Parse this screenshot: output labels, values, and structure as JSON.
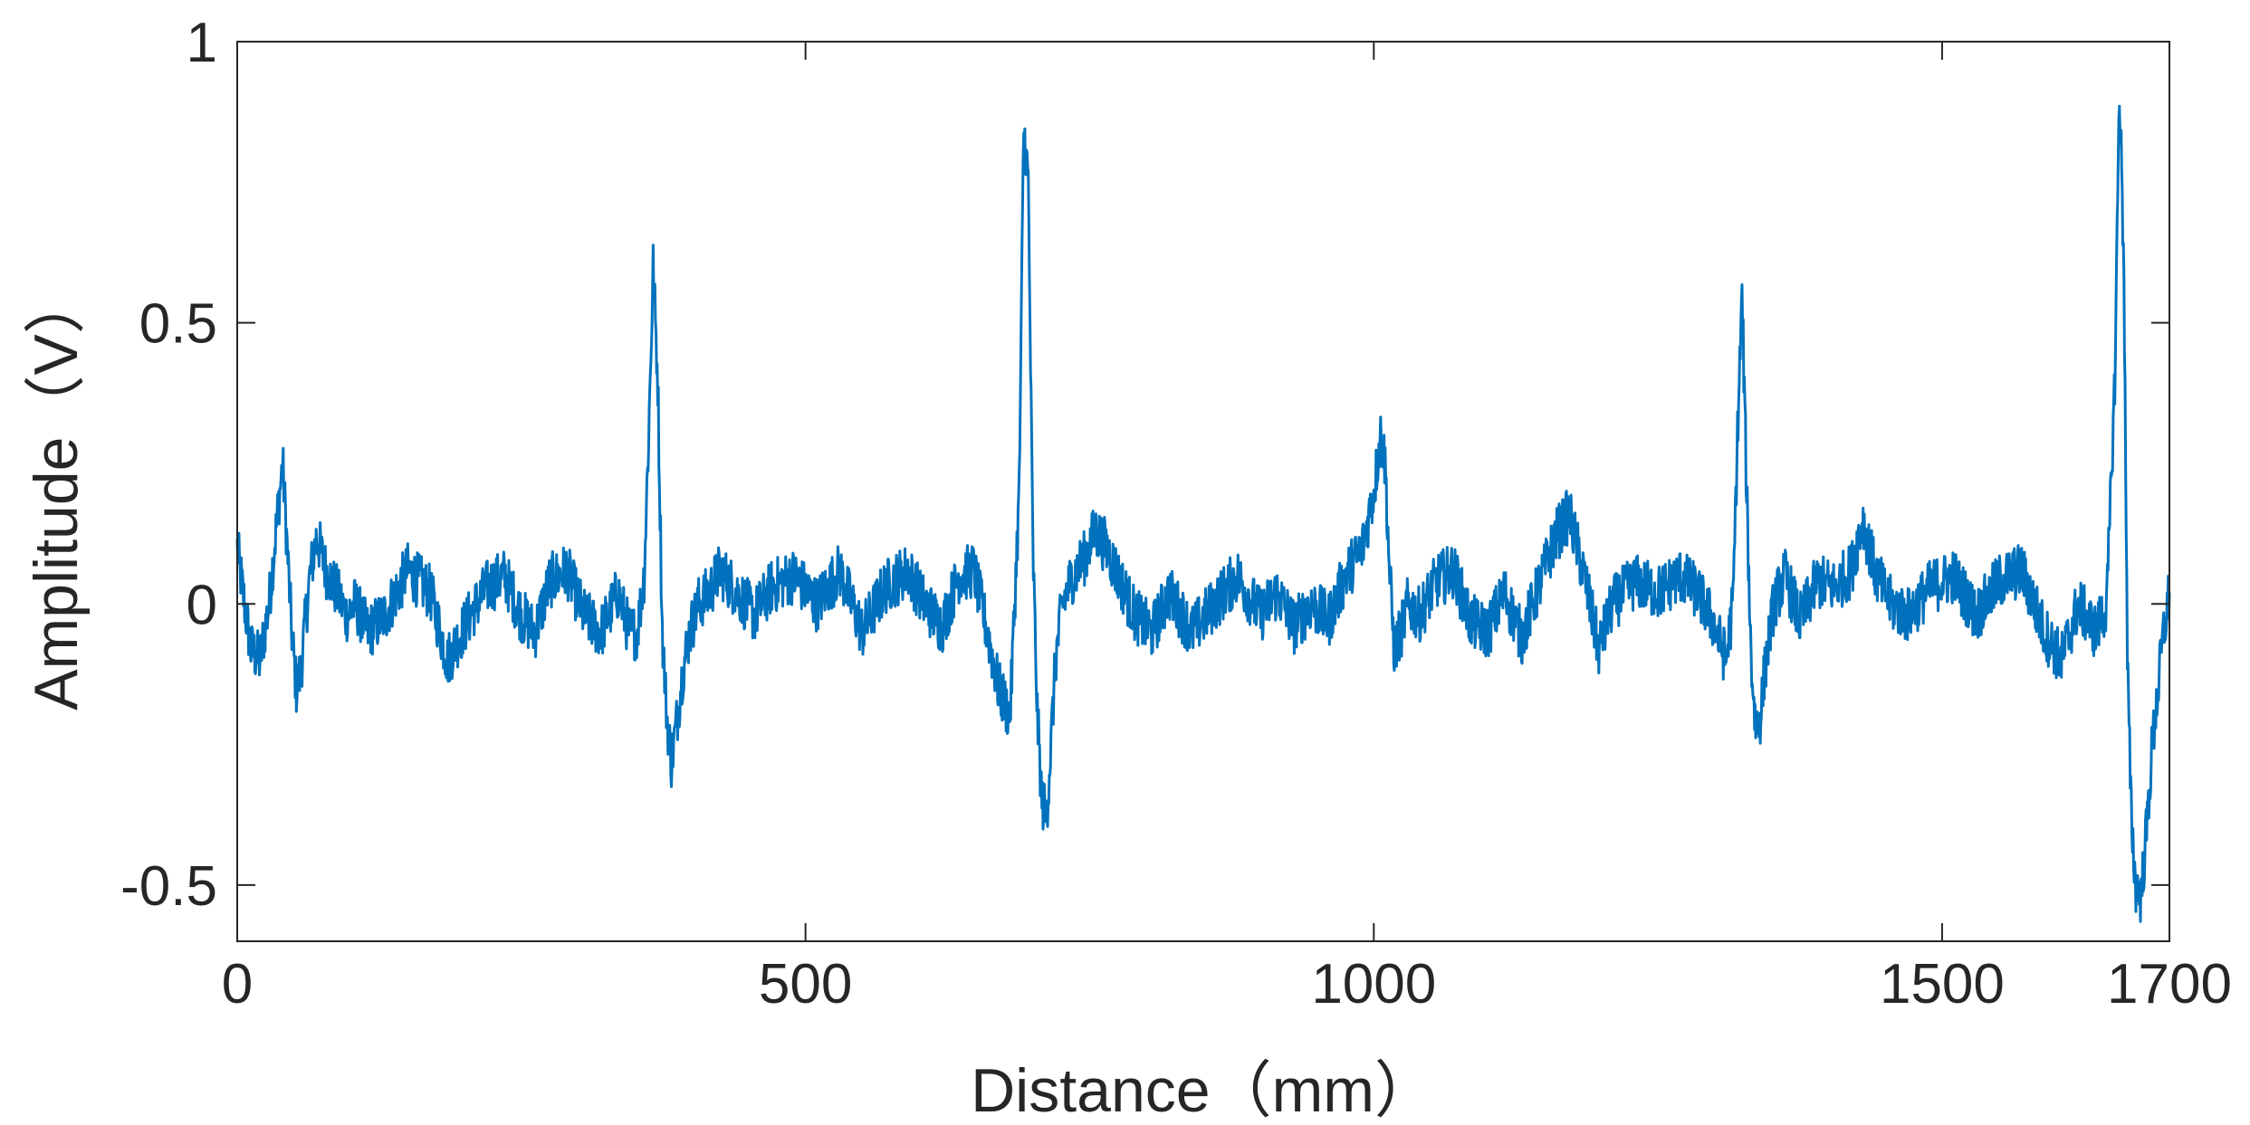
{
  "chart_data": {
    "type": "line",
    "title": "",
    "xlabel": "Distance（mm）",
    "ylabel": "Amplitude（V）",
    "xlim": [
      0,
      1700
    ],
    "ylim": [
      -0.6,
      1
    ],
    "x_ticks": [
      {
        "value": 0,
        "label": "0"
      },
      {
        "value": 500,
        "label": "500"
      },
      {
        "value": 1000,
        "label": "1000"
      },
      {
        "value": 1500,
        "label": "1500"
      },
      {
        "value": 1700,
        "label": "1700"
      }
    ],
    "y_ticks": [
      {
        "value": -0.5,
        "label": "-0.5"
      },
      {
        "value": 0,
        "label": "0"
      },
      {
        "value": 0.5,
        "label": "0.5"
      },
      {
        "value": 1,
        "label": "1"
      }
    ],
    "grid": false,
    "line_color": "#0072BD",
    "series": [
      {
        "x": [
          0,
          5,
          12,
          20,
          28,
          35,
          40,
          44,
          48,
          52,
          56,
          60,
          64,
          70,
          78,
          88,
          96,
          104,
          115,
          130,
          150,
          170,
          185,
          195,
          205,
          220,
          235,
          250,
          262,
          275,
          290,
          305,
          320,
          335,
          345,
          352,
          358,
          362,
          366,
          370,
          374,
          378,
          382,
          386,
          392,
          398,
          406,
          415,
          425,
          440,
          455,
          470,
          490,
          510,
          530,
          550,
          570,
          590,
          605,
          620,
          635,
          648,
          660,
          670,
          680,
          688,
          692,
          696,
          700,
          704,
          708,
          712,
          716,
          720,
          726,
          735,
          745,
          755,
          765,
          775,
          790,
          805,
          820,
          840,
          860,
          880,
          900,
          915,
          930,
          945,
          960,
          975,
          990,
          1000,
          1006,
          1010,
          1014,
          1018,
          1024,
          1030,
          1040,
          1055,
          1070,
          1085,
          1100,
          1115,
          1130,
          1145,
          1160,
          1172,
          1185,
          1198,
          1210,
          1230,
          1250,
          1270,
          1285,
          1298,
          1310,
          1316,
          1320,
          1324,
          1328,
          1332,
          1336,
          1340,
          1345,
          1352,
          1362,
          1375,
          1390,
          1405,
          1420,
          1430,
          1442,
          1455,
          1470,
          1490,
          1510,
          1530,
          1550,
          1570,
          1590,
          1605,
          1620,
          1635,
          1645,
          1652,
          1656,
          1660,
          1663,
          1666,
          1670,
          1675,
          1680,
          1685,
          1690,
          1695,
          1700
        ],
        "values": [
          0.1,
          0.02,
          -0.08,
          -0.1,
          0.0,
          0.15,
          0.25,
          0.1,
          -0.05,
          -0.15,
          -0.12,
          -0.03,
          0.05,
          0.12,
          0.06,
          0.02,
          -0.02,
          0.0,
          -0.05,
          -0.02,
          0.06,
          0.02,
          -0.1,
          -0.06,
          -0.02,
          0.03,
          0.05,
          -0.02,
          -0.05,
          0.04,
          0.06,
          -0.02,
          -0.05,
          0.02,
          -0.05,
          -0.05,
          0.05,
          0.3,
          0.6,
          0.4,
          -0.05,
          -0.2,
          -0.28,
          -0.22,
          -0.12,
          -0.05,
          0.0,
          0.02,
          0.06,
          0.02,
          -0.02,
          0.03,
          0.05,
          0.0,
          0.06,
          -0.05,
          0.03,
          0.06,
          0.0,
          -0.04,
          0.05,
          0.06,
          -0.05,
          -0.15,
          -0.2,
          0.2,
          0.85,
          0.75,
          0.1,
          -0.2,
          -0.35,
          -0.38,
          -0.25,
          -0.1,
          0.0,
          0.05,
          0.08,
          0.13,
          0.1,
          0.05,
          -0.02,
          -0.05,
          0.02,
          -0.05,
          0.0,
          0.05,
          -0.02,
          0.02,
          -0.04,
          0.0,
          -0.03,
          0.05,
          0.1,
          0.2,
          0.3,
          0.25,
          0.05,
          -0.08,
          -0.05,
          0.0,
          -0.02,
          0.04,
          0.06,
          -0.03,
          -0.05,
          0.02,
          -0.06,
          0.03,
          0.12,
          0.16,
          0.05,
          -0.08,
          0.0,
          0.04,
          0.02,
          0.05,
          0.02,
          -0.03,
          -0.1,
          0.0,
          0.3,
          0.55,
          0.2,
          -0.1,
          -0.22,
          -0.2,
          -0.1,
          0.0,
          0.05,
          -0.03,
          0.04,
          0.03,
          0.06,
          0.15,
          0.05,
          0.0,
          -0.02,
          0.03,
          0.05,
          -0.02,
          0.04,
          0.06,
          -0.05,
          -0.1,
          0.0,
          -0.05,
          0.0,
          0.4,
          0.92,
          0.6,
          -0.1,
          -0.35,
          -0.5,
          -0.52,
          -0.4,
          -0.25,
          -0.15,
          -0.05,
          0.02
        ]
      }
    ]
  }
}
